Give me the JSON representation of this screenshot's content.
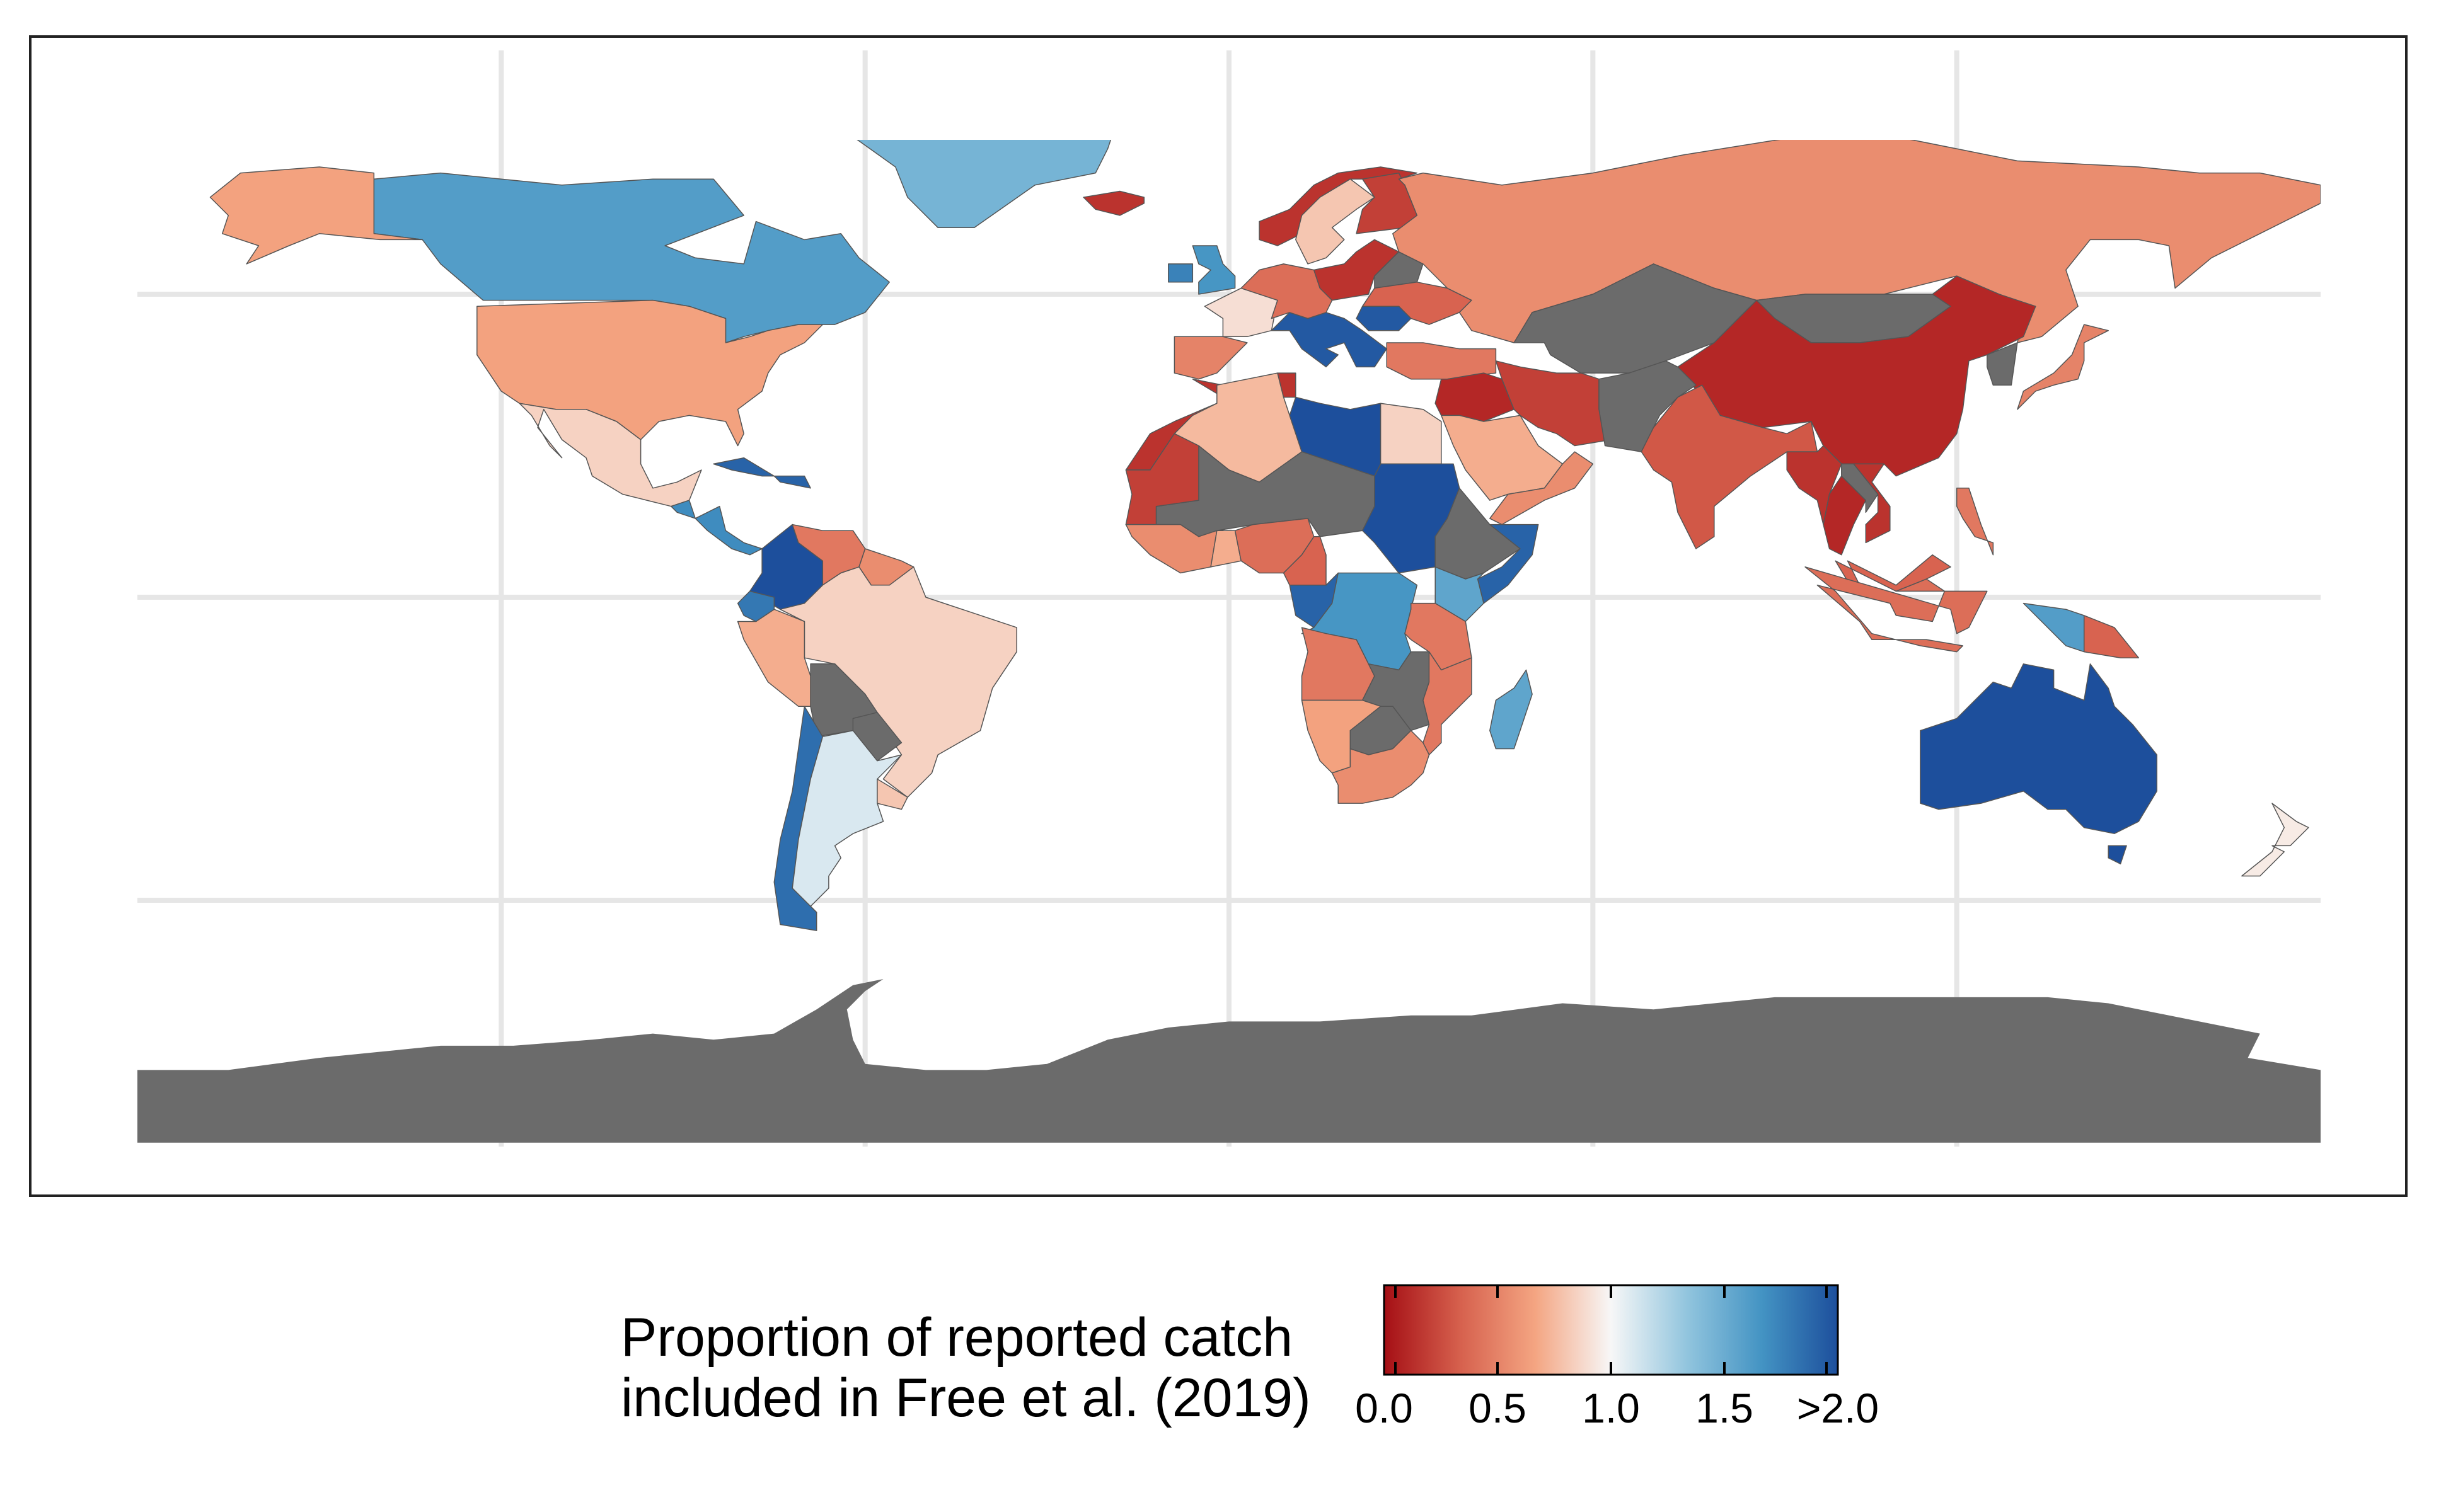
{
  "legend": {
    "title_line1": "Proportion of reported catch",
    "title_line2": "included in Free et al. (2019)",
    "tick_labels": [
      "0.0",
      "0.5",
      "1.0",
      "1.5",
      ">2.0"
    ],
    "ticks": [
      0.0,
      0.5,
      1.0,
      1.5,
      2.0
    ],
    "range": [
      0.0,
      2.0
    ],
    "colors": [
      "#a50f15",
      "#d6604d",
      "#f4a582",
      "#f7f7f7",
      "#92c5de",
      "#4393c3",
      "#1d4f9c"
    ]
  },
  "map": {
    "no_data_color": "#6b6b6b",
    "ocean_color": "#ffffff",
    "border_color": "#555555",
    "gridline_color": "#e6e6e6",
    "lon_gridlines": [
      -120,
      -60,
      0,
      60,
      120
    ],
    "lat_gridlines": [
      -50,
      0,
      50
    ],
    "regions": [
      {
        "name": "Canada",
        "value": 1.6
      },
      {
        "name": "Greenland",
        "value": 1.45
      },
      {
        "name": "United States",
        "value": 0.65
      },
      {
        "name": "Alaska",
        "value": 0.65
      },
      {
        "name": "Mexico",
        "value": 0.85
      },
      {
        "name": "Cuba",
        "value": 1.9
      },
      {
        "name": "Central America",
        "value": 1.7
      },
      {
        "name": "Colombia",
        "value": 2.0
      },
      {
        "name": "Venezuela",
        "value": 0.45
      },
      {
        "name": "Guianas",
        "value": 0.55
      },
      {
        "name": "Brazil",
        "value": 0.85
      },
      {
        "name": "Peru",
        "value": 0.7
      },
      {
        "name": "Ecuador",
        "value": 1.8
      },
      {
        "name": "Bolivia",
        "value": null
      },
      {
        "name": "Paraguay",
        "value": null
      },
      {
        "name": "Chile",
        "value": 1.85
      },
      {
        "name": "Argentina",
        "value": 1.1
      },
      {
        "name": "Uruguay",
        "value": 0.8
      },
      {
        "name": "Iceland",
        "value": 0.15
      },
      {
        "name": "Svalbard",
        "value": 0.2
      },
      {
        "name": "Norway",
        "value": 0.15
      },
      {
        "name": "Sweden",
        "value": 0.8
      },
      {
        "name": "Finland",
        "value": 0.2
      },
      {
        "name": "United Kingdom",
        "value": 1.65
      },
      {
        "name": "Ireland",
        "value": 1.75
      },
      {
        "name": "France",
        "value": 0.9
      },
      {
        "name": "Iberia",
        "value": 0.5
      },
      {
        "name": "Italy Balkans",
        "value": 1.95
      },
      {
        "name": "Central Europe",
        "value": 0.4
      },
      {
        "name": "Poland Baltics",
        "value": 0.15
      },
      {
        "name": "Belarus",
        "value": null
      },
      {
        "name": "Ukraine",
        "value": 0.35
      },
      {
        "name": "Romania",
        "value": 1.95
      },
      {
        "name": "Turkey",
        "value": 0.45
      },
      {
        "name": "Russia",
        "value": 0.55
      },
      {
        "name": "Kazakhstan Central Asia",
        "value": null
      },
      {
        "name": "Mongolia",
        "value": null
      },
      {
        "name": "China",
        "value": 0.1
      },
      {
        "name": "Korea",
        "value": null
      },
      {
        "name": "Japan",
        "value": 0.5
      },
      {
        "name": "Middle East Levant",
        "value": 0.1
      },
      {
        "name": "Iran",
        "value": 0.2
      },
      {
        "name": "Afghanistan Pakistan",
        "value": null
      },
      {
        "name": "Saudi Arabia",
        "value": 0.7
      },
      {
        "name": "Yemen Oman",
        "value": 0.55
      },
      {
        "name": "India",
        "value": 0.3
      },
      {
        "name": "Myanmar",
        "value": 0.15
      },
      {
        "name": "Thailand",
        "value": 0.1
      },
      {
        "name": "Laos",
        "value": null
      },
      {
        "name": "Vietnam",
        "value": 0.15
      },
      {
        "name": "Malaysia",
        "value": 0.35
      },
      {
        "name": "Indonesia",
        "value": 0.4
      },
      {
        "name": "Philippines",
        "value": 0.45
      },
      {
        "name": "Papua New Guinea",
        "value": 0.35
      },
      {
        "name": "Papua Indonesia",
        "value": 1.6
      },
      {
        "name": "Australia",
        "value": 2.0
      },
      {
        "name": "Tasmania",
        "value": 2.0
      },
      {
        "name": "New Zealand",
        "value": 0.95
      },
      {
        "name": "Morocco Western Sahara",
        "value": 0.15
      },
      {
        "name": "Algeria",
        "value": 0.75
      },
      {
        "name": "Tunisia",
        "value": 0.15
      },
      {
        "name": "Libya",
        "value": 2.0
      },
      {
        "name": "Egypt",
        "value": 0.85
      },
      {
        "name": "Mali Niger Chad",
        "value": null
      },
      {
        "name": "Mauritania Senegal",
        "value": 0.2
      },
      {
        "name": "West Africa Coast",
        "value": 0.55
      },
      {
        "name": "Ghana",
        "value": 0.7
      },
      {
        "name": "Nigeria",
        "value": 0.4
      },
      {
        "name": "Cameroon",
        "value": 0.35
      },
      {
        "name": "Sudan",
        "value": 2.0
      },
      {
        "name": "Eritrea Ethiopia",
        "value": null
      },
      {
        "name": "Somalia",
        "value": 1.9
      },
      {
        "name": "Kenya",
        "value": 1.55
      },
      {
        "name": "Congo",
        "value": 1.9
      },
      {
        "name": "DR Congo",
        "value": 1.65
      },
      {
        "name": "Tanzania",
        "value": 0.45
      },
      {
        "name": "Angola",
        "value": 0.45
      },
      {
        "name": "Zambia Zimbabwe",
        "value": null
      },
      {
        "name": "Mozambique",
        "value": 0.45
      },
      {
        "name": "Namibia",
        "value": 0.65
      },
      {
        "name": "Botswana",
        "value": null
      },
      {
        "name": "South Africa",
        "value": 0.55
      },
      {
        "name": "Madagascar",
        "value": 1.55
      },
      {
        "name": "Antarctica",
        "value": null
      }
    ]
  }
}
